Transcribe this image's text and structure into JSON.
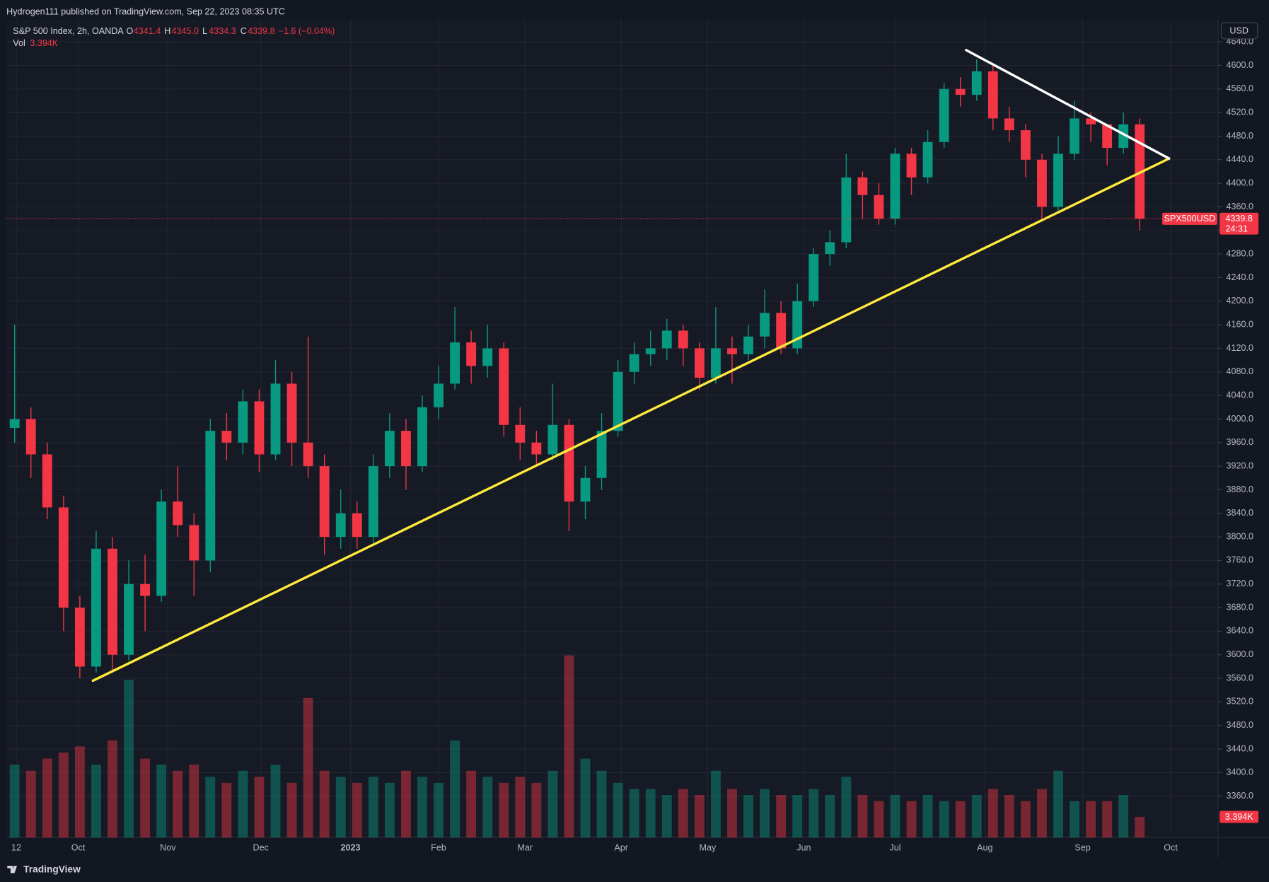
{
  "header": {
    "published": "Hydrogen111 published on TradingView.com, Sep 22, 2023 08:35 UTC"
  },
  "chart_data": {
    "type": "candlestick",
    "symbol": "S&P 500 Index, 2h, OANDA",
    "legend": {
      "o_label": "O",
      "open": "4341.4",
      "h_label": "H",
      "high": "4345.0",
      "l_label": "L",
      "low": "4334.3",
      "c_label": "C",
      "close": 4339.8,
      "change": "−1.6 (−0.04%)",
      "vol_label": "Vol",
      "vol": "3.394K"
    },
    "currency": "USD",
    "ticker": "SPX500USD",
    "countdown": "24:31",
    "up_color": "#089981",
    "down_color": "#f23645",
    "grid": true,
    "open": [
      3985,
      4000,
      3940,
      3850,
      3680,
      3580,
      3780,
      3600,
      3720,
      3700,
      3860,
      3820,
      3760,
      3980,
      3960,
      4030,
      3940,
      4060,
      3960,
      3920,
      3800,
      3840,
      3800,
      3920,
      3980,
      3920,
      4020,
      4060,
      4130,
      4090,
      4120,
      3990,
      3960,
      3940,
      3990,
      3860,
      3900,
      3980,
      4080,
      4110,
      4120,
      4150,
      4120,
      4070,
      4120,
      4110,
      4140,
      4180,
      4120,
      4200,
      4280,
      4300,
      4410,
      4380,
      4340,
      4450,
      4410,
      4470,
      4560,
      4550,
      4590,
      4510,
      4490,
      4440,
      4360,
      4450,
      4510,
      4500,
      4460,
      4500
    ],
    "high": [
      4160,
      4020,
      3960,
      3870,
      3700,
      3810,
      3800,
      3760,
      3770,
      3880,
      3920,
      3840,
      4000,
      4010,
      4050,
      4050,
      4100,
      4080,
      4140,
      3940,
      3880,
      3860,
      3940,
      4010,
      4000,
      4040,
      4090,
      4190,
      4150,
      4160,
      4130,
      4020,
      3980,
      4060,
      4000,
      3920,
      4010,
      4100,
      4130,
      4150,
      4170,
      4160,
      4130,
      4190,
      4140,
      4160,
      4220,
      4200,
      4230,
      4290,
      4320,
      4450,
      4420,
      4400,
      4460,
      4460,
      4490,
      4570,
      4580,
      4610,
      4600,
      4530,
      4500,
      4450,
      4480,
      4540,
      4520,
      4500,
      4520,
      4510
    ],
    "low": [
      3960,
      3900,
      3830,
      3640,
      3560,
      3570,
      3570,
      3590,
      3640,
      3690,
      3800,
      3700,
      3740,
      3930,
      3940,
      3910,
      3930,
      3920,
      3900,
      3770,
      3780,
      3780,
      3790,
      3900,
      3880,
      3910,
      4000,
      4050,
      4060,
      4070,
      3970,
      3930,
      3920,
      3930,
      3810,
      3830,
      3880,
      3970,
      4060,
      4090,
      4100,
      4090,
      4050,
      4060,
      4060,
      4100,
      4120,
      4110,
      4110,
      4190,
      4260,
      4290,
      4340,
      4330,
      4330,
      4380,
      4400,
      4460,
      4530,
      4540,
      4490,
      4470,
      4410,
      4340,
      4350,
      4440,
      4470,
      4430,
      4450,
      4320
    ],
    "close": [
      4000,
      3940,
      3850,
      3680,
      3580,
      3780,
      3600,
      3720,
      3700,
      3860,
      3820,
      3760,
      3980,
      3960,
      4030,
      3940,
      4060,
      3960,
      3920,
      3800,
      3840,
      3800,
      3920,
      3980,
      3920,
      4020,
      4060,
      4130,
      4090,
      4120,
      3990,
      3960,
      3940,
      3990,
      3860,
      3900,
      3980,
      4080,
      4110,
      4120,
      4150,
      4120,
      4070,
      4120,
      4110,
      4140,
      4180,
      4120,
      4200,
      4280,
      4300,
      4410,
      4380,
      4340,
      4450,
      4410,
      4470,
      4560,
      4550,
      4590,
      4510,
      4490,
      4440,
      4360,
      4450,
      4510,
      4500,
      4460,
      4500,
      4340
    ],
    "volume": [
      12000,
      11000,
      13000,
      14000,
      15000,
      12000,
      16000,
      26000,
      13000,
      12000,
      11000,
      12000,
      10000,
      9000,
      11000,
      10000,
      12000,
      9000,
      23000,
      11000,
      10000,
      9000,
      10000,
      9000,
      11000,
      10000,
      9000,
      16000,
      11000,
      10000,
      9000,
      10000,
      9000,
      11000,
      30000,
      13000,
      11000,
      9000,
      8000,
      8000,
      7000,
      8000,
      7000,
      11000,
      8000,
      7000,
      8000,
      7000,
      7000,
      8000,
      7000,
      10000,
      7000,
      6000,
      7000,
      6000,
      7000,
      6000,
      6000,
      7000,
      8000,
      7000,
      6000,
      8000,
      11000,
      6000,
      6000,
      6000,
      7000,
      3394
    ],
    "vol_ylim": [
      0,
      40000
    ],
    "ylim": [
      3290,
      4678
    ],
    "yticks": [
      {
        "value": 3360,
        "label": "3360.0"
      },
      {
        "value": 3400,
        "label": "3400.0"
      },
      {
        "value": 3440,
        "label": "3440.0"
      },
      {
        "value": 3480,
        "label": "3480.0"
      },
      {
        "value": 3520,
        "label": "3520.0"
      },
      {
        "value": 3560,
        "label": "3560.0"
      },
      {
        "value": 3600,
        "label": "3600.0"
      },
      {
        "value": 3640,
        "label": "3640.0"
      },
      {
        "value": 3680,
        "label": "3680.0"
      },
      {
        "value": 3720,
        "label": "3720.0"
      },
      {
        "value": 3760,
        "label": "3760.0"
      },
      {
        "value": 3800,
        "label": "3800.0"
      },
      {
        "value": 3840,
        "label": "3840.0"
      },
      {
        "value": 3880,
        "label": "3880.0"
      },
      {
        "value": 3920,
        "label": "3920.0"
      },
      {
        "value": 3960,
        "label": "3960.0"
      },
      {
        "value": 4000,
        "label": "4000.0"
      },
      {
        "value": 4040,
        "label": "4040.0"
      },
      {
        "value": 4080,
        "label": "4080.0"
      },
      {
        "value": 4120,
        "label": "4120.0"
      },
      {
        "value": 4160,
        "label": "4160.0"
      },
      {
        "value": 4200,
        "label": "4200.0"
      },
      {
        "value": 4240,
        "label": "4240.0"
      },
      {
        "value": 4280,
        "label": "4280.0"
      },
      {
        "value": 4320,
        "label": "4320.0"
      },
      {
        "value": 4360,
        "label": "4360.0"
      },
      {
        "value": 4400,
        "label": "4400.0"
      },
      {
        "value": 4440,
        "label": "4440.0"
      },
      {
        "value": 4480,
        "label": "4480.0"
      },
      {
        "value": 4520,
        "label": "4520.0"
      },
      {
        "value": 4560,
        "label": "4560.0"
      },
      {
        "value": 4600,
        "label": "4600.0"
      },
      {
        "value": 4640,
        "label": "4640.0"
      }
    ],
    "xlim": [
      0,
      74.3
    ],
    "xticks": [
      {
        "value": 0.6,
        "label": "12"
      },
      {
        "value": 4.4,
        "label": "Oct"
      },
      {
        "value": 9.9,
        "label": "Nov"
      },
      {
        "value": 15.6,
        "label": "Dec"
      },
      {
        "value": 21.1,
        "label": "2023"
      },
      {
        "value": 26.5,
        "label": "Feb"
      },
      {
        "value": 31.8,
        "label": "Mar"
      },
      {
        "value": 37.7,
        "label": "Apr"
      },
      {
        "value": 43.0,
        "label": "May"
      },
      {
        "value": 48.9,
        "label": "Jun"
      },
      {
        "value": 54.5,
        "label": "Jul"
      },
      {
        "value": 60.0,
        "label": "Aug"
      },
      {
        "value": 66.0,
        "label": "Sep"
      },
      {
        "value": 71.4,
        "label": "Oct"
      }
    ],
    "drawings": [
      {
        "color": "#ffeb3b",
        "points": [
          [
            5.3,
            3556
          ],
          [
            71.3,
            4442
          ]
        ]
      },
      {
        "color": "#ffffff",
        "points": [
          [
            58.85,
            4626
          ],
          [
            71.3,
            4442
          ]
        ]
      }
    ]
  },
  "footer": {
    "brand": "TradingView"
  }
}
